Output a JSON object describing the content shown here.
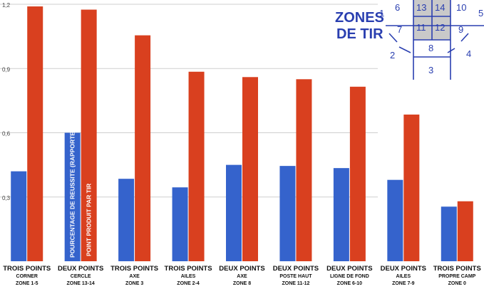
{
  "chart_data": {
    "type": "bar",
    "title": "",
    "xlabel": "",
    "ylabel": "",
    "ylim": [
      0,
      1.2
    ],
    "yticks": [
      {
        "value": 0.3,
        "label": "0,3"
      },
      {
        "value": 0.6,
        "label": "0,6"
      },
      {
        "value": 0.9,
        "label": "0,9"
      },
      {
        "value": 1.2,
        "label": "1,2"
      }
    ],
    "grid": true,
    "categories": [
      {
        "line1": "TROIS POINTS",
        "line2": "CORNER",
        "line3": "ZONE 1-5"
      },
      {
        "line1": "DEUX POINTS",
        "line2": "CERCLE",
        "line3": "ZONE 13-14"
      },
      {
        "line1": "TROIS POINTS",
        "line2": "AXE",
        "line3": "ZONE 3"
      },
      {
        "line1": "TROIS POINTS",
        "line2": "AILES",
        "line3": "ZONE 2-4"
      },
      {
        "line1": "DEUX POINTS",
        "line2": "AXE",
        "line3": "ZONE 8"
      },
      {
        "line1": "DEUX POINTS",
        "line2": "POSTE HAUT",
        "line3": "ZONE 11-12"
      },
      {
        "line1": "DEUX POINTS",
        "line2": "LIGNE DE FOND",
        "line3": "ZONE 6-10"
      },
      {
        "line1": "DEUX POINTS",
        "line2": "AILES",
        "line3": "ZONE 7-9"
      },
      {
        "line1": "TROIS POINTS",
        "line2": "PROPRE CAMP",
        "line3": "ZONE 0"
      }
    ],
    "series": [
      {
        "name": "POURCENTAGE DE REUSSITE (RAPPORTE SUR 1)",
        "color": "#3563cc",
        "values": [
          0.42,
          0.6,
          0.385,
          0.345,
          0.45,
          0.445,
          0.435,
          0.38,
          0.255
        ]
      },
      {
        "name": "POINT PRODUIT PAR TIR",
        "color": "#d9401f",
        "values": [
          1.19,
          1.175,
          1.055,
          0.885,
          0.86,
          0.85,
          0.815,
          0.685,
          0.28
        ]
      }
    ]
  },
  "zones_inset": {
    "title_line1": "ZONES",
    "title_line2": "DE TIR",
    "numbers": [
      "1",
      "2",
      "3",
      "4",
      "5",
      "6",
      "7",
      "8",
      "9",
      "10",
      "11",
      "12",
      "13",
      "14"
    ],
    "line_color": "#2a3fb0",
    "paint_color": "#c9c9c9"
  }
}
